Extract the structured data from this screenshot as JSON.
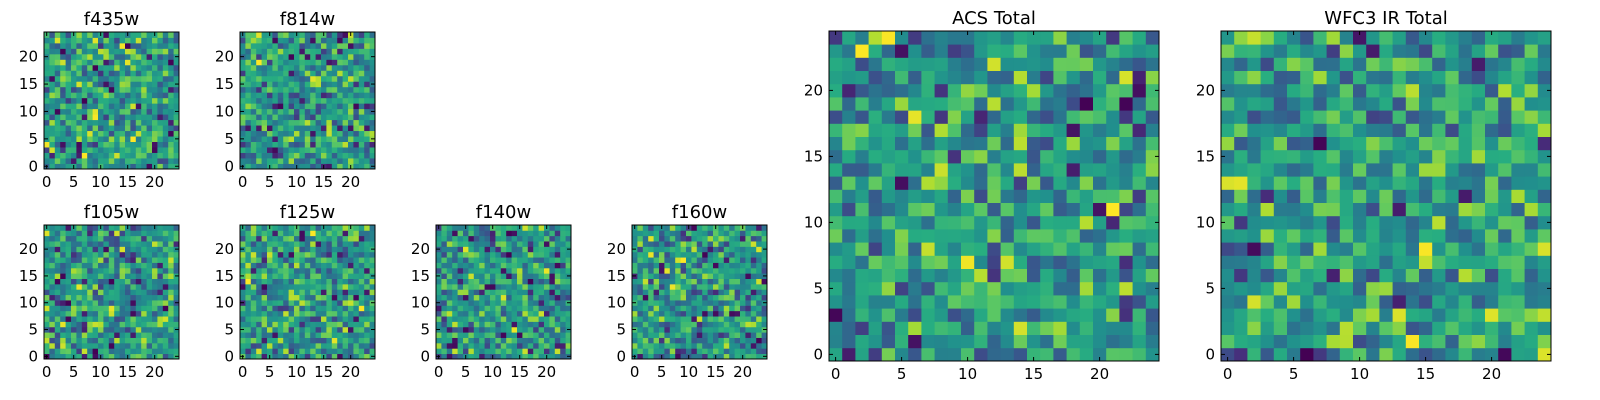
{
  "chart_data": [
    {
      "type": "heatmap",
      "title": "f435w",
      "size": 25,
      "xticks": [
        0,
        5,
        10,
        15,
        20
      ],
      "yticks": [
        0,
        5,
        10,
        15,
        20
      ],
      "xlim": [
        -0.5,
        24.5
      ],
      "ylim": [
        -0.5,
        24.5
      ],
      "colormap": "viridis",
      "seed": 11,
      "low_frac": 0.03
    },
    {
      "type": "heatmap",
      "title": "f814w",
      "size": 25,
      "xticks": [
        0,
        5,
        10,
        15,
        20
      ],
      "yticks": [
        0,
        5,
        10,
        15,
        20
      ],
      "xlim": [
        -0.5,
        24.5
      ],
      "ylim": [
        -0.5,
        24.5
      ],
      "colormap": "viridis",
      "seed": 23,
      "low_frac": 0.04
    },
    {
      "type": "heatmap",
      "title": "f105w",
      "size": 25,
      "xticks": [
        0,
        5,
        10,
        15,
        20
      ],
      "yticks": [
        0,
        5,
        10,
        15,
        20
      ],
      "xlim": [
        -0.5,
        24.5
      ],
      "ylim": [
        -0.5,
        24.5
      ],
      "colormap": "viridis",
      "seed": 37,
      "low_frac": 0.05
    },
    {
      "type": "heatmap",
      "title": "f125w",
      "size": 25,
      "xticks": [
        0,
        5,
        10,
        15,
        20
      ],
      "yticks": [
        0,
        5,
        10,
        15,
        20
      ],
      "xlim": [
        -0.5,
        24.5
      ],
      "ylim": [
        -0.5,
        24.5
      ],
      "colormap": "viridis",
      "seed": 41,
      "low_frac": 0.05
    },
    {
      "type": "heatmap",
      "title": "f140w",
      "size": 25,
      "xticks": [
        0,
        5,
        10,
        15,
        20
      ],
      "yticks": [
        0,
        5,
        10,
        15,
        20
      ],
      "xlim": [
        -0.5,
        24.5
      ],
      "ylim": [
        -0.5,
        24.5
      ],
      "colormap": "viridis",
      "seed": 53,
      "low_frac": 0.05
    },
    {
      "type": "heatmap",
      "title": "f160w",
      "size": 25,
      "xticks": [
        0,
        5,
        10,
        15,
        20
      ],
      "yticks": [
        0,
        5,
        10,
        15,
        20
      ],
      "xlim": [
        -0.5,
        24.5
      ],
      "ylim": [
        -0.5,
        24.5
      ],
      "colormap": "viridis",
      "seed": 67,
      "low_frac": 0.05
    },
    {
      "type": "heatmap",
      "title": "ACS Total",
      "size": 25,
      "xticks": [
        0,
        5,
        10,
        15,
        20
      ],
      "yticks": [
        0,
        5,
        10,
        15,
        20
      ],
      "xlim": [
        -0.5,
        24.5
      ],
      "ylim": [
        -0.5,
        24.5
      ],
      "colormap": "viridis",
      "seed": 79,
      "low_frac": 0.025
    },
    {
      "type": "heatmap",
      "title": "WFC3 IR Total",
      "size": 25,
      "xticks": [
        0,
        5,
        10,
        15,
        20
      ],
      "yticks": [
        0,
        5,
        10,
        15,
        20
      ],
      "xlim": [
        -0.5,
        24.5
      ],
      "ylim": [
        -0.5,
        24.5
      ],
      "colormap": "viridis",
      "seed": 97,
      "low_frac": 0.02
    }
  ],
  "colors": {
    "background": "#ffffff",
    "frame": "#000000"
  }
}
